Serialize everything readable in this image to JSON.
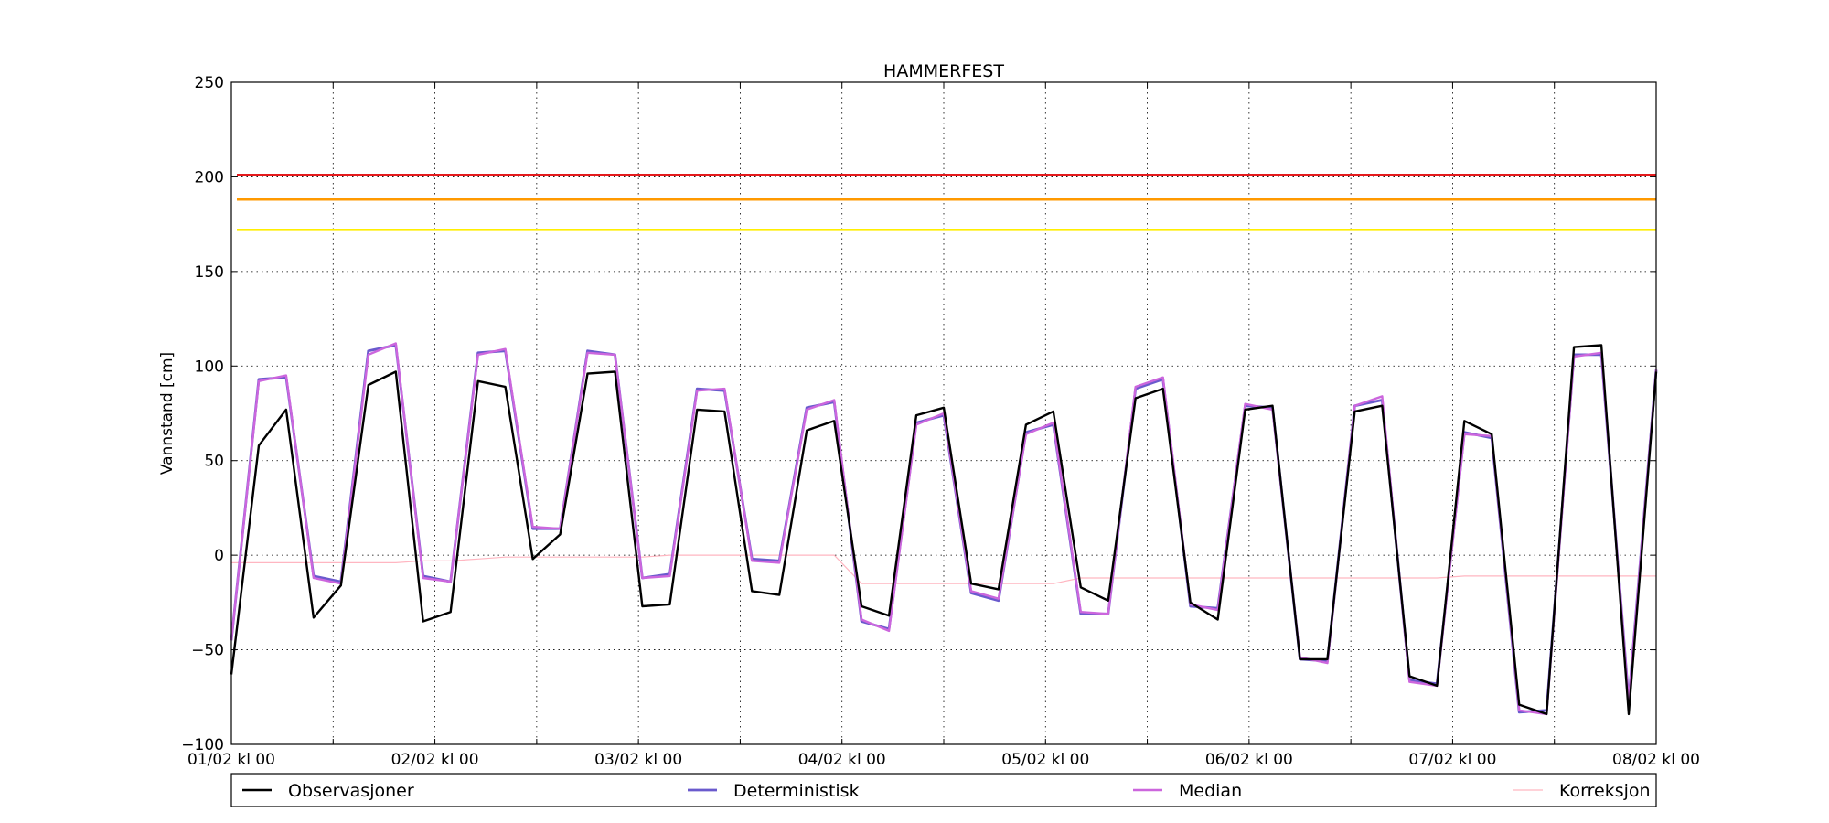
{
  "chart_data": {
    "type": "line",
    "title": "HAMMERFEST",
    "xlabel": "",
    "ylabel": "Vannstand [cm]",
    "ylim": [
      -100,
      250
    ],
    "yticks": [
      -100,
      -50,
      0,
      50,
      100,
      150,
      200,
      250
    ],
    "ytick_labels": [
      "−100",
      "−50",
      "0",
      "50",
      "100",
      "150",
      "200",
      "250"
    ],
    "xlim_hours": [
      0,
      168
    ],
    "xtick_labels": [
      "01/02 kl 00",
      "02/02 kl 00",
      "03/02 kl 00",
      "04/02 kl 00",
      "05/02 kl 00",
      "06/02 kl 00",
      "07/02 kl 00",
      "08/02 kl 00"
    ],
    "grid": true,
    "legend_position": "bottom",
    "thresholds": [
      {
        "value": 201,
        "color": "#e41a1c"
      },
      {
        "value": 188,
        "color": "#ff9900"
      },
      {
        "value": 172,
        "color": "#ffee00"
      }
    ],
    "series": [
      {
        "name": "Observasjoner",
        "color": "#000000",
        "values": [
          -63,
          58,
          77,
          -33,
          -16,
          90,
          97,
          -35,
          -30,
          92,
          89,
          -2,
          11,
          96,
          97,
          -27,
          -26,
          77,
          76,
          -19,
          -21,
          66,
          71,
          -27,
          -32,
          74,
          78,
          -15,
          -18,
          69,
          76,
          -17,
          -24,
          83,
          88,
          -25,
          -34,
          77,
          79,
          -55,
          -55,
          76,
          79,
          -64,
          -69,
          71,
          64,
          -79,
          -84,
          110,
          111,
          -84,
          97
        ]
      },
      {
        "name": "Deterministisk",
        "color": "#6a5acd",
        "values": [
          -45,
          93,
          94,
          -11,
          -14,
          108,
          111,
          -11,
          -14,
          107,
          108,
          14,
          14,
          108,
          106,
          -12,
          -10,
          88,
          87,
          -2,
          -3,
          78,
          81,
          -35,
          -39,
          70,
          74,
          -20,
          -24,
          65,
          69,
          -31,
          -31,
          88,
          93,
          -27,
          -28,
          79,
          78,
          -55,
          -56,
          79,
          82,
          -66,
          -68,
          65,
          62,
          -83,
          -82,
          106,
          106,
          -77,
          98
        ]
      },
      {
        "name": "Median",
        "color": "#cc66dd",
        "values": [
          -45,
          92,
          95,
          -12,
          -15,
          106,
          112,
          -12,
          -14,
          106,
          109,
          15,
          14,
          107,
          106,
          -12,
          -11,
          87,
          88,
          -3,
          -4,
          77,
          82,
          -34,
          -40,
          69,
          75,
          -19,
          -23,
          64,
          70,
          -30,
          -31,
          89,
          94,
          -26,
          -29,
          80,
          77,
          -54,
          -57,
          79,
          84,
          -67,
          -69,
          64,
          63,
          -82,
          -84,
          105,
          107,
          -78,
          98
        ]
      },
      {
        "name": "Korreksjon",
        "color": "#ffb6c1",
        "values": [
          -4,
          -4,
          -4,
          -4,
          -4,
          -4,
          -4,
          -3,
          -3,
          -2,
          -1,
          -1,
          -1,
          -1,
          -1,
          -1,
          0,
          0,
          0,
          0,
          0,
          0,
          0,
          -15,
          -15,
          -15,
          -15,
          -15,
          -15,
          -15,
          -15,
          -12,
          -12,
          -12,
          -12,
          -12,
          -12,
          -12,
          -12,
          -12,
          -12,
          -12,
          -12,
          -12,
          -12,
          -11,
          -11,
          -11,
          -11,
          -11,
          -11,
          -11,
          -11
        ]
      }
    ]
  }
}
